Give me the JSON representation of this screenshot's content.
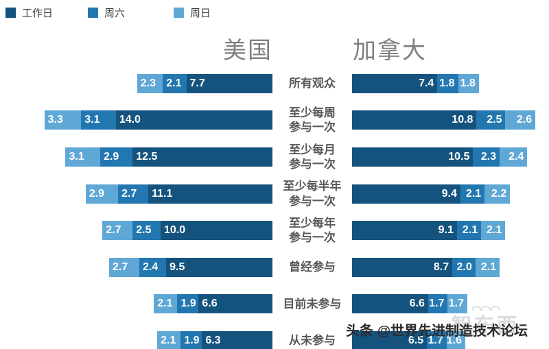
{
  "columns": {
    "left_title": "美国",
    "right_title": "加拿大"
  },
  "watermark": {
    "text": "头条 @世界先进制造技术论坛",
    "logo_text": "智东西",
    "logo_arc": "◠◠◠"
  },
  "chart_data": {
    "type": "bar",
    "variant": "butterfly-stacked-horizontal",
    "title": "",
    "legend_position": "top-left",
    "legend": [
      {
        "key": "workday",
        "name": "工作日",
        "color": "#15537F"
      },
      {
        "key": "saturday",
        "name": "周六",
        "color": "#2377B0"
      },
      {
        "key": "sunday",
        "name": "周日",
        "color": "#5FA8D6"
      }
    ],
    "categories": [
      [
        "所有观众"
      ],
      [
        "至少每周",
        "参与一次"
      ],
      [
        "至少每月",
        "参与一次"
      ],
      [
        "至少每半年",
        "参与一次"
      ],
      [
        "至少每年",
        "参与一次"
      ],
      [
        "曾经参与"
      ],
      [
        "目前未参与"
      ],
      [
        "从未参与"
      ]
    ],
    "us": {
      "title": "美国",
      "series_order_note": "values per row are [工作日, 周六, 周日]",
      "values": [
        [
          "7.7",
          "2.1",
          "2.3"
        ],
        [
          "14.0",
          "3.1",
          "3.3"
        ],
        [
          "12.5",
          "2.9",
          "3.1"
        ],
        [
          "11.1",
          "2.7",
          "2.9"
        ],
        [
          "10.0",
          "2.5",
          "2.7"
        ],
        [
          "9.5",
          "2.4",
          "2.7"
        ],
        [
          "6.6",
          "1.9",
          "2.1"
        ],
        [
          "6.3",
          "1.9",
          "2.1"
        ]
      ]
    },
    "canada": {
      "title": "加拿大",
      "series_order_note": "values per row are [工作日, 周六, 周日]",
      "values": [
        [
          "7.4",
          "1.8",
          "1.8"
        ],
        [
          "10.8",
          "2.5",
          "2.6"
        ],
        [
          "10.5",
          "2.3",
          "2.4"
        ],
        [
          "9.4",
          "2.1",
          "2.2"
        ],
        [
          "9.1",
          "2.1",
          "2.1"
        ],
        [
          "8.7",
          "2.0",
          "2.1"
        ],
        [
          "6.6",
          "1.7",
          "1.7"
        ],
        [
          "6.5",
          "1.7",
          "1.6"
        ]
      ]
    }
  }
}
